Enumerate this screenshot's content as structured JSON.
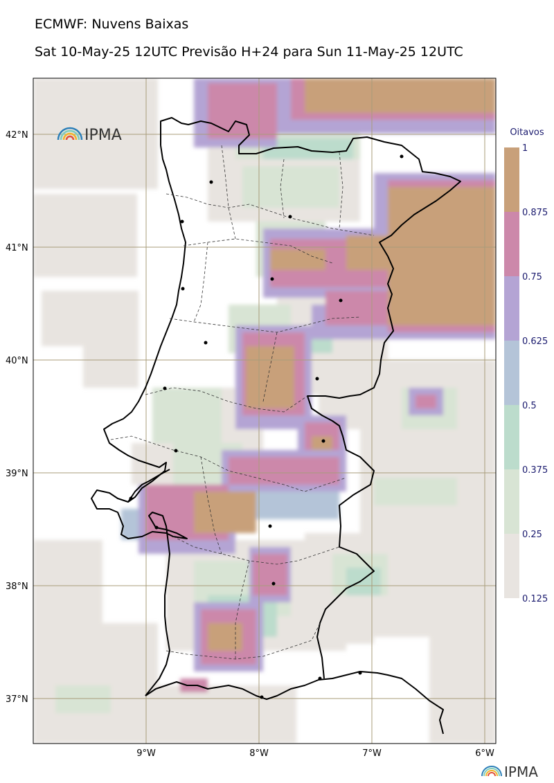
{
  "header": {
    "title": "ECMWF: Nuvens Baixas",
    "subtitle": "Sat 10-May-25 12UTC Previsão H+24 para Sun 11-May-25 12UTC"
  },
  "map": {
    "lat_labels": [
      "42°N",
      "41°N",
      "40°N",
      "39°N",
      "38°N",
      "37°N"
    ],
    "lon_labels": [
      "9°W",
      "8°W",
      "7°W",
      "6°W"
    ],
    "colors": {
      "coast": "#000000",
      "borders": "#333333",
      "grid": "#a89c7a",
      "land_bg": "#ffffff"
    }
  },
  "colorbar": {
    "title": "Oitavos",
    "ticks": [
      "1",
      "0.875",
      "0.75",
      "0.625",
      "0.5",
      "0.375",
      "0.25",
      "0.125"
    ],
    "colors": [
      "#c8a07a",
      "#cc88aa",
      "#b4a4d4",
      "#b4c4d8",
      "#bcdccc",
      "#d8e4d4",
      "#e8e4e0"
    ]
  },
  "logo": {
    "text": "IPMA",
    "icon": "ipma-rainbow-icon"
  }
}
